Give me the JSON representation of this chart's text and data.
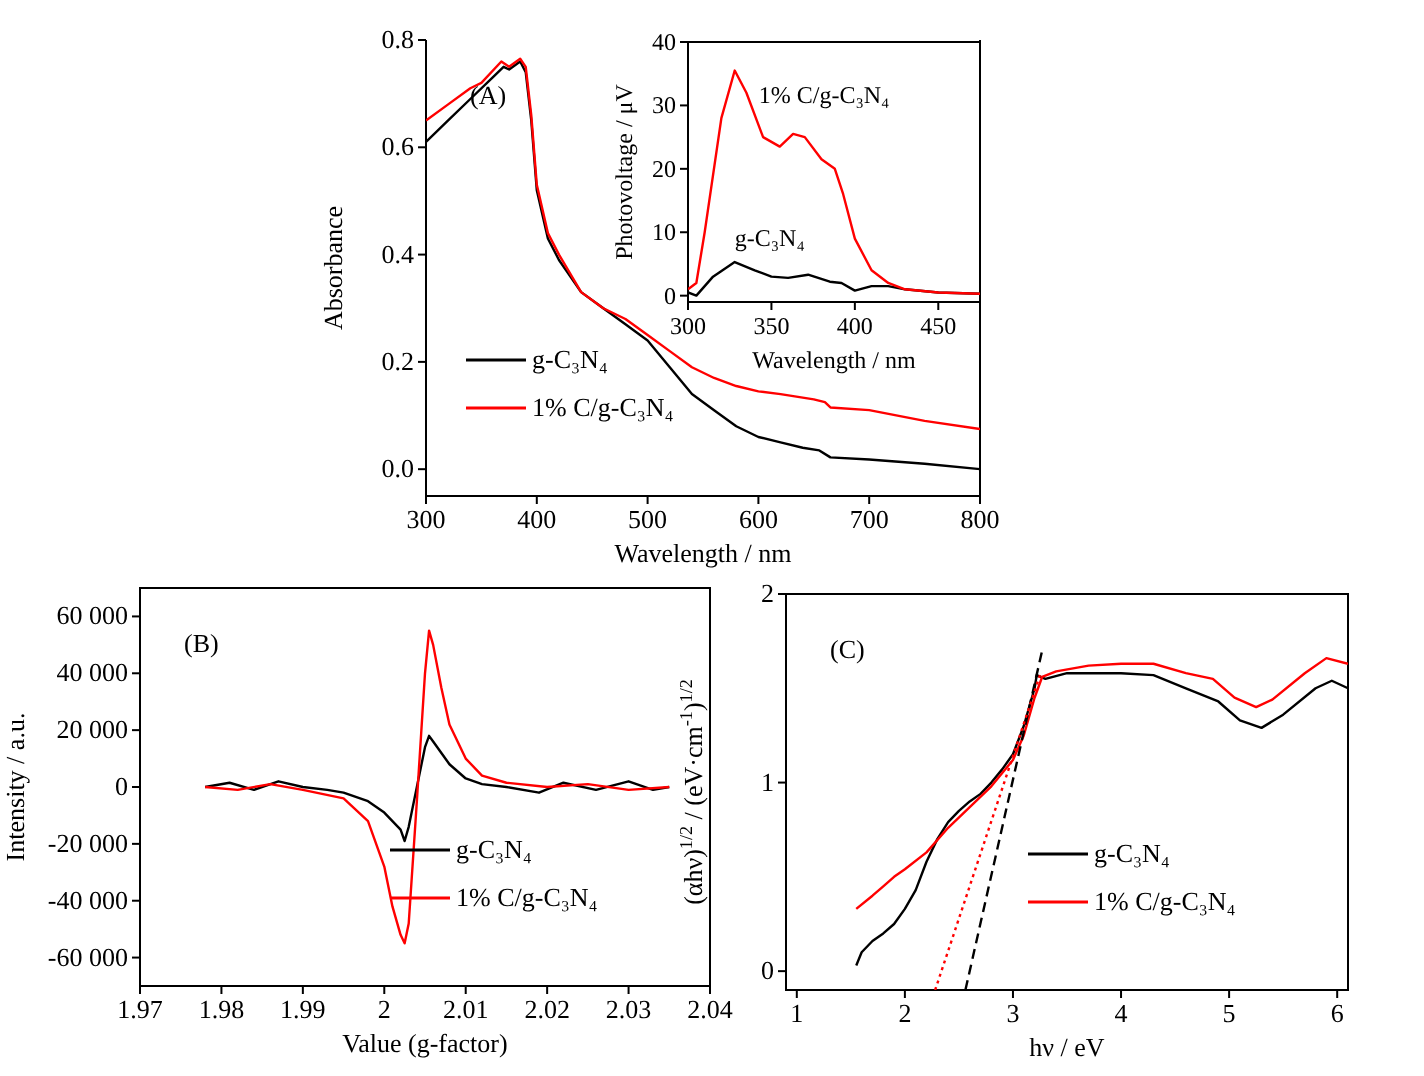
{
  "chart_data": [
    {
      "type": "line",
      "xlabel": "Wavelength / nm",
      "ylabel": "Absorbance",
      "annotations": [
        "(A)"
      ],
      "xlim": [
        300,
        800
      ],
      "xticks": [
        300,
        400,
        500,
        600,
        700,
        800
      ],
      "ylim": [
        -0.05,
        0.8
      ],
      "yticks": [
        {
          "value": 0,
          "label": "0.0"
        },
        0.2,
        0.4,
        0.6,
        0.8
      ],
      "legend": "bottom left",
      "series": [
        {
          "name": "g-C₃N₄",
          "color": "#000000",
          "x": [
            300,
            320,
            340,
            360,
            370,
            375,
            385,
            390,
            395,
            400,
            410,
            420,
            440,
            460,
            480,
            500,
            520,
            540,
            560,
            580,
            600,
            620,
            640,
            655,
            665,
            700,
            750,
            800
          ],
          "values": [
            0.61,
            0.65,
            0.69,
            0.73,
            0.75,
            0.745,
            0.76,
            0.74,
            0.65,
            0.52,
            0.43,
            0.39,
            0.33,
            0.3,
            0.27,
            0.24,
            0.19,
            0.14,
            0.11,
            0.08,
            0.06,
            0.05,
            0.04,
            0.035,
            0.022,
            0.018,
            0.01,
            0.0
          ]
        },
        {
          "name": "1% C/g-C₃N₄",
          "color": "#ff0000",
          "x": [
            300,
            320,
            340,
            350,
            368,
            375,
            385,
            390,
            395,
            400,
            410,
            420,
            440,
            460,
            480,
            500,
            520,
            540,
            560,
            580,
            600,
            620,
            650,
            660,
            665,
            700,
            750,
            800
          ],
          "values": [
            0.65,
            0.68,
            0.71,
            0.72,
            0.76,
            0.75,
            0.765,
            0.75,
            0.66,
            0.53,
            0.44,
            0.4,
            0.33,
            0.3,
            0.28,
            0.25,
            0.22,
            0.19,
            0.17,
            0.155,
            0.145,
            0.14,
            0.13,
            0.125,
            0.115,
            0.11,
            0.09,
            0.075
          ]
        }
      ]
    },
    {
      "type": "line",
      "xlabel": "Wavelength / nm",
      "ylabel": "Photovoltage / μV",
      "xlim": [
        300,
        475
      ],
      "xticks": [
        300,
        350,
        400,
        450
      ],
      "ylim": [
        -1,
        40
      ],
      "yticks": [
        0,
        10,
        20,
        30,
        40
      ],
      "legend": false,
      "series": [
        {
          "name": "g-C₃N₄",
          "color": "#000000",
          "x": [
            300,
            305,
            315,
            328,
            340,
            350,
            360,
            372,
            385,
            392,
            400,
            410,
            420,
            430,
            450,
            475
          ],
          "values": [
            0.5,
            0,
            3,
            5.3,
            4,
            3,
            2.8,
            3.3,
            2.2,
            2,
            0.8,
            1.5,
            1.5,
            1,
            0.5,
            0.3
          ]
        },
        {
          "name": "1% C/g-C₃N₄",
          "color": "#ff0000",
          "x": [
            300,
            305,
            310,
            320,
            328,
            335,
            345,
            355,
            363,
            370,
            380,
            388,
            393,
            400,
            410,
            420,
            430,
            450,
            475
          ],
          "values": [
            1,
            2,
            10,
            28,
            35.5,
            32,
            25,
            23.5,
            25.5,
            25,
            21.5,
            20,
            16,
            9,
            4,
            2,
            1,
            0.5,
            0.3
          ]
        }
      ]
    },
    {
      "type": "line",
      "xlabel": "Value (g-factor)",
      "ylabel": "Intensity / a.u.",
      "annotations": [
        "(B)"
      ],
      "xlim": [
        1.97,
        2.04
      ],
      "xticks": [
        1.97,
        1.98,
        1.99,
        2.0,
        2.01,
        2.02,
        2.03,
        2.04
      ],
      "ylim": [
        -70000,
        70000
      ],
      "yticks": [
        {
          "value": -60000,
          "label": "-60 000"
        },
        {
          "value": -40000,
          "label": "-40 000"
        },
        {
          "value": -20000,
          "label": "-20 000"
        },
        0,
        {
          "value": 20000,
          "label": "20 000"
        },
        {
          "value": 40000,
          "label": "40 000"
        },
        {
          "value": 60000,
          "label": "60 000"
        }
      ],
      "legend": "bottom right",
      "series": [
        {
          "name": "g-C₃N₄",
          "color": "#000000",
          "x": [
            1.978,
            1.981,
            1.984,
            1.987,
            1.99,
            1.993,
            1.995,
            1.998,
            2.0,
            2.002,
            2.0025,
            2.003,
            2.004,
            2.005,
            2.0055,
            2.006,
            2.008,
            2.01,
            2.012,
            2.015,
            2.019,
            2.022,
            2.026,
            2.03,
            2.033,
            2.035
          ],
          "values": [
            0,
            1500,
            -1000,
            2000,
            0,
            -1000,
            -2000,
            -5000,
            -9000,
            -15000,
            -19000,
            -14000,
            0,
            14000,
            18000,
            16000,
            8000,
            3000,
            1000,
            0,
            -2000,
            1500,
            -1000,
            2000,
            -1000,
            0
          ]
        },
        {
          "name": "1% C/g-C₃N₄",
          "color": "#ff0000",
          "x": [
            1.978,
            1.982,
            1.986,
            1.99,
            1.995,
            1.998,
            2.0,
            2.001,
            2.002,
            2.0025,
            2.003,
            2.004,
            2.005,
            2.0055,
            2.006,
            2.007,
            2.008,
            2.01,
            2.012,
            2.015,
            2.02,
            2.025,
            2.03,
            2.035
          ],
          "values": [
            0,
            -1000,
            1000,
            -1000,
            -4000,
            -12000,
            -28000,
            -42000,
            -52000,
            -55000,
            -48000,
            -5000,
            40000,
            55000,
            50000,
            35000,
            22000,
            10000,
            4000,
            1500,
            0,
            1000,
            -1000,
            0
          ]
        }
      ]
    },
    {
      "type": "line",
      "xlabel": "hν / eV",
      "ylabel": "(αhν)$^{1/2}$ / (eV·cm$^{-1}$)$^{1/2}$",
      "annotations": [
        "(C)"
      ],
      "xlim": [
        0.9,
        6.1
      ],
      "xticks": [
        1,
        2,
        3,
        4,
        5,
        6
      ],
      "ylim": [
        -0.1,
        2
      ],
      "yticks": [
        0,
        1,
        2
      ],
      "legend": "bottom right",
      "series": [
        {
          "name": "g-C₃N₄",
          "color": "#000000",
          "x": [
            1.55,
            1.6,
            1.7,
            1.8,
            1.9,
            2.0,
            2.1,
            2.2,
            2.3,
            2.4,
            2.5,
            2.6,
            2.7,
            2.8,
            2.9,
            3.0,
            3.1,
            3.2,
            3.22,
            3.3,
            3.5,
            4.0,
            4.3,
            4.6,
            4.9,
            5.1,
            5.3,
            5.5,
            5.8,
            5.95,
            6.1
          ],
          "values": [
            0.03,
            0.1,
            0.16,
            0.2,
            0.25,
            0.33,
            0.43,
            0.58,
            0.7,
            0.79,
            0.85,
            0.9,
            0.94,
            1.0,
            1.07,
            1.15,
            1.3,
            1.5,
            1.57,
            1.55,
            1.58,
            1.58,
            1.57,
            1.5,
            1.43,
            1.33,
            1.29,
            1.36,
            1.5,
            1.54,
            1.5
          ]
        },
        {
          "name": "1% C/g-C₃N₄",
          "color": "#ff0000",
          "x": [
            1.55,
            1.7,
            1.8,
            1.9,
            2.0,
            2.2,
            2.4,
            2.6,
            2.8,
            3.0,
            3.1,
            3.2,
            3.27,
            3.4,
            3.7,
            4.0,
            4.3,
            4.6,
            4.85,
            5.05,
            5.25,
            5.4,
            5.7,
            5.9,
            6.1
          ],
          "values": [
            0.33,
            0.4,
            0.45,
            0.5,
            0.54,
            0.63,
            0.76,
            0.87,
            0.98,
            1.12,
            1.25,
            1.45,
            1.56,
            1.59,
            1.62,
            1.63,
            1.63,
            1.58,
            1.55,
            1.45,
            1.4,
            1.44,
            1.58,
            1.66,
            1.63
          ]
        },
        {
          "type": "line",
          "color": "#000000",
          "line_style": "dashed",
          "x": [
            2.56,
            3.27
          ],
          "values": [
            -0.1,
            1.7
          ]
        },
        {
          "type": "line",
          "color": "#ff0000",
          "line_style": "dotted",
          "x": [
            2.28,
            3.25
          ],
          "values": [
            -0.1,
            1.57
          ]
        }
      ]
    }
  ]
}
